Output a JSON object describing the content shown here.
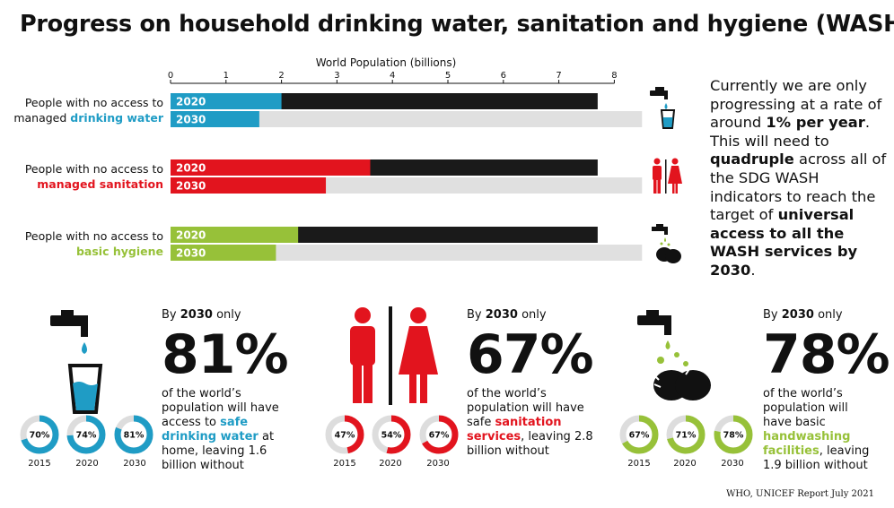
{
  "title": "Progress on household drinking water, sanitation and hygiene (WASH)",
  "chart_data": {
    "type": "bar",
    "xlabel": "World Population (billions)",
    "xlim": [
      0,
      8
    ],
    "ticks": [
      "0",
      "1",
      "2",
      "3",
      "4",
      "5",
      "6",
      "7",
      "8"
    ],
    "total_2020": 7.7,
    "total_2030": 8.5,
    "groups": [
      {
        "label_line1": "People with no access to",
        "label_line2": "managed",
        "label_kw": "drinking water",
        "color": "#1f9cc5",
        "bars": [
          {
            "year": "2020",
            "value": 2.0
          },
          {
            "year": "2030",
            "value": 1.6
          }
        ]
      },
      {
        "label_line1": "People with no access to",
        "label_line2": "",
        "label_kw": "managed sanitation",
        "color": "#e2141e",
        "bars": [
          {
            "year": "2020",
            "value": 3.6
          },
          {
            "year": "2030",
            "value": 2.8
          }
        ]
      },
      {
        "label_line1": "People with no access to",
        "label_line2": "",
        "label_kw": "basic hygiene",
        "color": "#97c139",
        "bars": [
          {
            "year": "2020",
            "value": 2.3
          },
          {
            "year": "2030",
            "value": 1.9
          }
        ]
      }
    ]
  },
  "side_text": {
    "p1": "Currently we are only progressing at a rate of around ",
    "b1": "1% per year",
    "p2": ". This will need to ",
    "b2": "quadruple",
    "p3": " across all of the SDG WASH indicators to reach the target of ",
    "b3": "universal access to all the WASH services by 2030",
    "p4": "."
  },
  "panels": [
    {
      "color": "#1f9cc5",
      "by_pre": "By ",
      "by_year": "2030",
      "by_post": " only",
      "percent": "81%",
      "desc_pre": "of the world’s population will have access to ",
      "desc_kw": "safe drinking water",
      "desc_post": " at home, leaving 1.6 billion without",
      "donuts": [
        {
          "year": "2015",
          "value": 70,
          "label": "70%"
        },
        {
          "year": "2020",
          "value": 74,
          "label": "74%"
        },
        {
          "year": "2030",
          "value": 81,
          "label": "81%"
        }
      ]
    },
    {
      "color": "#e2141e",
      "by_pre": "By ",
      "by_year": "2030",
      "by_post": " only",
      "percent": "67%",
      "desc_pre": "of the world’s population will have safe ",
      "desc_kw": "sanitation services",
      "desc_post": ", leaving 2.8 billion without",
      "donuts": [
        {
          "year": "2015",
          "value": 47,
          "label": "47%"
        },
        {
          "year": "2020",
          "value": 54,
          "label": "54%"
        },
        {
          "year": "2030",
          "value": 67,
          "label": "67%"
        }
      ]
    },
    {
      "color": "#97c139",
      "by_pre": "By ",
      "by_year": "2030",
      "by_post": " only",
      "percent": "78%",
      "desc_pre": "of the world’s population will have basic ",
      "desc_kw": "handwashing facilities",
      "desc_post": ", leaving 1.9 billion without",
      "donuts": [
        {
          "year": "2015",
          "value": 67,
          "label": "67%"
        },
        {
          "year": "2020",
          "value": 71,
          "label": "71%"
        },
        {
          "year": "2030",
          "value": 78,
          "label": "78%"
        }
      ]
    }
  ],
  "icons": [
    "tap-drop-glass-icon",
    "man-woman-icon",
    "tap-handwashing-icon"
  ],
  "source": "WHO, UNICEF Report July 2021"
}
